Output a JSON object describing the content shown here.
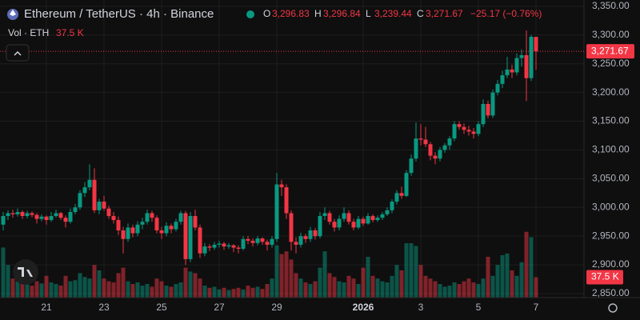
{
  "chart_data": {
    "type": "candlestick",
    "title": "Ethereum / TetherUS · 4h · Binance",
    "ohlc_legend": [
      {
        "label": "O",
        "value": "3,296.83"
      },
      {
        "label": "H",
        "value": "3,296.84"
      },
      {
        "label": "L",
        "value": "3,239.44"
      },
      {
        "label": "C",
        "value": "3,271.67"
      }
    ],
    "change": "−25.17 (−0.76%)",
    "volume_title": "Vol · ETH",
    "volume_value_label": "37.5 K",
    "last_price_label": "3,271.67",
    "up_color": "#089981",
    "down_color": "#f23645",
    "ylim": [
      2843,
      3361
    ],
    "yticks": [
      {
        "value": 2850,
        "label": "2,850.00"
      },
      {
        "value": 2900,
        "label": "2,900.00"
      },
      {
        "value": 2950,
        "label": "2,950.00"
      },
      {
        "value": 3000,
        "label": "3,000.00"
      },
      {
        "value": 3050,
        "label": "3,050.00"
      },
      {
        "value": 3100,
        "label": "3,100.00"
      },
      {
        "value": 3150,
        "label": "3,150.00"
      },
      {
        "value": 3200,
        "label": "3,200.00"
      },
      {
        "value": 3250,
        "label": "3,250.00"
      },
      {
        "value": 3300,
        "label": "3,300.00"
      },
      {
        "value": 3350,
        "label": "3,350.00"
      }
    ],
    "xticks": [
      {
        "value": 9,
        "label": "21"
      },
      {
        "value": 21,
        "label": "23"
      },
      {
        "value": 33,
        "label": "25"
      },
      {
        "value": 45,
        "label": "27"
      },
      {
        "value": 57,
        "label": "29"
      },
      {
        "value": 75,
        "label": "2026"
      },
      {
        "value": 87,
        "label": "3"
      },
      {
        "value": 99,
        "label": "5"
      },
      {
        "value": 111,
        "label": "7"
      }
    ],
    "candles": [
      [
        2970,
        2992,
        2960,
        2985
      ],
      [
        2985,
        2995,
        2978,
        2990
      ],
      [
        2990,
        2996,
        2982,
        2988
      ],
      [
        2988,
        2998,
        2984,
        2992
      ],
      [
        2992,
        2995,
        2980,
        2985
      ],
      [
        2985,
        2994,
        2981,
        2990
      ],
      [
        2990,
        2993,
        2983,
        2987
      ],
      [
        2987,
        2990,
        2972,
        2980
      ],
      [
        2980,
        2988,
        2976,
        2984
      ],
      [
        2984,
        2986,
        2970,
        2978
      ],
      [
        2978,
        2992,
        2975,
        2985
      ],
      [
        2985,
        2996,
        2982,
        2990
      ],
      [
        2990,
        2992,
        2978,
        2982
      ],
      [
        2982,
        2986,
        2965,
        2975
      ],
      [
        2975,
        2998,
        2972,
        2992
      ],
      [
        2992,
        3006,
        2988,
        3000
      ],
      [
        3000,
        3030,
        2996,
        3025
      ],
      [
        3025,
        3044,
        3018,
        3035
      ],
      [
        3035,
        3075,
        3030,
        3048
      ],
      [
        3048,
        3068,
        2990,
        2995
      ],
      [
        2995,
        3015,
        2988,
        3010
      ],
      [
        3010,
        3020,
        2994,
        2998
      ],
      [
        2998,
        3003,
        2980,
        2985
      ],
      [
        2985,
        2992,
        2972,
        2978
      ],
      [
        2978,
        2984,
        2952,
        2960
      ],
      [
        2960,
        2966,
        2920,
        2945
      ],
      [
        2945,
        2972,
        2940,
        2965
      ],
      [
        2965,
        2970,
        2948,
        2955
      ],
      [
        2955,
        2976,
        2950,
        2970
      ],
      [
        2970,
        2982,
        2962,
        2975
      ],
      [
        2975,
        2996,
        2970,
        2990
      ],
      [
        2990,
        2994,
        2975,
        2982
      ],
      [
        2982,
        2986,
        2955,
        2960
      ],
      [
        2960,
        2966,
        2945,
        2955
      ],
      [
        2955,
        2974,
        2950,
        2968
      ],
      [
        2968,
        2972,
        2955,
        2962
      ],
      [
        2962,
        2980,
        2958,
        2975
      ],
      [
        2975,
        2994,
        2970,
        2990
      ],
      [
        2990,
        2994,
        2900,
        2910
      ],
      [
        2910,
        2992,
        2905,
        2985
      ],
      [
        2985,
        2996,
        2960,
        2965
      ],
      [
        2965,
        2970,
        2912,
        2920
      ],
      [
        2920,
        2938,
        2915,
        2932
      ],
      [
        2932,
        2936,
        2924,
        2930
      ],
      [
        2930,
        2940,
        2926,
        2935
      ],
      [
        2935,
        2942,
        2930,
        2937
      ],
      [
        2937,
        2940,
        2926,
        2932
      ],
      [
        2932,
        2938,
        2928,
        2934
      ],
      [
        2934,
        2936,
        2922,
        2930
      ],
      [
        2930,
        2934,
        2920,
        2928
      ],
      [
        2928,
        2950,
        2925,
        2945
      ],
      [
        2945,
        2950,
        2936,
        2942
      ],
      [
        2942,
        2946,
        2932,
        2938
      ],
      [
        2938,
        2950,
        2934,
        2946
      ],
      [
        2946,
        2948,
        2935,
        2940
      ],
      [
        2940,
        2944,
        2925,
        2935
      ],
      [
        2935,
        2950,
        2930,
        2945
      ],
      [
        2945,
        3060,
        2940,
        3040
      ],
      [
        3040,
        3048,
        3020,
        3035
      ],
      [
        3035,
        3040,
        2980,
        2990
      ],
      [
        2990,
        2995,
        2925,
        2940
      ],
      [
        2940,
        2948,
        2920,
        2935
      ],
      [
        2935,
        2956,
        2930,
        2950
      ],
      [
        2950,
        2954,
        2938,
        2945
      ],
      [
        2945,
        2966,
        2940,
        2960
      ],
      [
        2960,
        2964,
        2944,
        2950
      ],
      [
        2950,
        2992,
        2946,
        2985
      ],
      [
        2985,
        3000,
        2978,
        2990
      ],
      [
        2990,
        2994,
        2970,
        2975
      ],
      [
        2975,
        2980,
        2958,
        2965
      ],
      [
        2965,
        2986,
        2960,
        2980
      ],
      [
        2980,
        3000,
        2975,
        2990
      ],
      [
        2990,
        2995,
        2970,
        2975
      ],
      [
        2975,
        2980,
        2960,
        2965
      ],
      [
        2965,
        2985,
        2962,
        2980
      ],
      [
        2980,
        2984,
        2968,
        2972
      ],
      [
        2972,
        2990,
        2970,
        2985
      ],
      [
        2985,
        2988,
        2974,
        2978
      ],
      [
        2978,
        2986,
        2975,
        2982
      ],
      [
        2982,
        2992,
        2978,
        2988
      ],
      [
        2988,
        3000,
        2985,
        2995
      ],
      [
        2995,
        3014,
        2990,
        3010
      ],
      [
        3010,
        3030,
        3005,
        3025
      ],
      [
        3025,
        3036,
        3015,
        3020
      ],
      [
        3020,
        3065,
        3018,
        3060
      ],
      [
        3060,
        3092,
        3055,
        3085
      ],
      [
        3085,
        3148,
        3080,
        3120
      ],
      [
        3120,
        3145,
        3108,
        3118
      ],
      [
        3118,
        3140,
        3105,
        3110
      ],
      [
        3110,
        3114,
        3082,
        3090
      ],
      [
        3090,
        3096,
        3075,
        3085
      ],
      [
        3085,
        3105,
        3080,
        3100
      ],
      [
        3100,
        3112,
        3095,
        3108
      ],
      [
        3108,
        3124,
        3100,
        3120
      ],
      [
        3120,
        3150,
        3115,
        3145
      ],
      [
        3145,
        3150,
        3135,
        3140
      ],
      [
        3140,
        3146,
        3128,
        3135
      ],
      [
        3135,
        3142,
        3125,
        3132
      ],
      [
        3132,
        3138,
        3120,
        3128
      ],
      [
        3128,
        3150,
        3124,
        3145
      ],
      [
        3145,
        3188,
        3140,
        3180
      ],
      [
        3180,
        3186,
        3155,
        3160
      ],
      [
        3160,
        3205,
        3156,
        3200
      ],
      [
        3200,
        3222,
        3195,
        3215
      ],
      [
        3215,
        3238,
        3208,
        3230
      ],
      [
        3230,
        3262,
        3225,
        3240
      ],
      [
        3240,
        3248,
        3225,
        3235
      ],
      [
        3235,
        3268,
        3230,
        3260
      ],
      [
        3260,
        3275,
        3245,
        3265
      ],
      [
        3265,
        3308,
        3185,
        3225
      ],
      [
        3225,
        3300,
        3220,
        3296.83
      ],
      [
        3296.83,
        3296.84,
        3239.44,
        3271.67
      ]
    ],
    "volume": [
      92,
      60,
      35,
      30,
      25,
      28,
      22,
      30,
      26,
      40,
      28,
      25,
      22,
      40,
      30,
      32,
      45,
      38,
      35,
      60,
      50,
      35,
      30,
      28,
      45,
      55,
      30,
      25,
      28,
      22,
      25,
      20,
      35,
      30,
      22,
      20,
      25,
      28,
      55,
      48,
      45,
      35,
      22,
      18,
      20,
      15,
      18,
      14,
      16,
      18,
      15,
      22,
      18,
      20,
      16,
      25,
      35,
      96,
      80,
      85,
      70,
      45,
      35,
      28,
      25,
      30,
      55,
      85,
      45,
      38,
      30,
      28,
      40,
      35,
      25,
      55,
      75,
      40,
      35,
      30,
      28,
      40,
      60,
      50,
      100,
      100,
      95,
      60,
      40,
      35,
      30,
      25,
      20,
      22,
      28,
      25,
      30,
      35,
      28,
      25,
      35,
      75,
      40,
      60,
      78,
      81,
      50,
      40,
      65,
      121,
      111,
      37.5
    ],
    "volume_lim": [
      0,
      250
    ]
  }
}
